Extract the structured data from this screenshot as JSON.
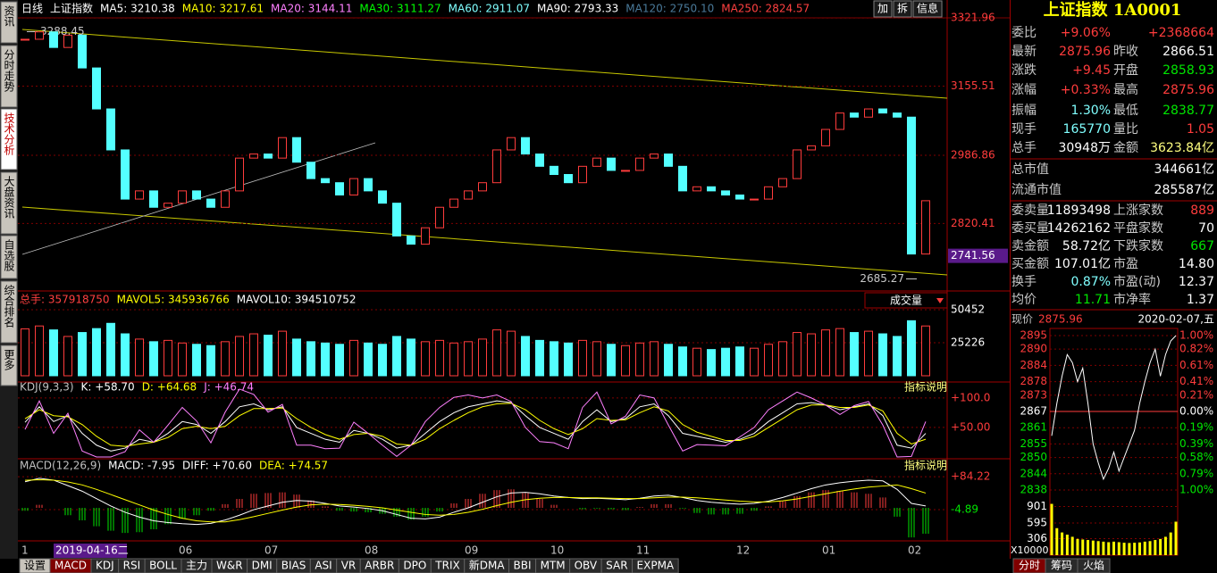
{
  "toolbar": {
    "items": [
      {
        "text": "日线",
        "color": "#ffffff"
      },
      {
        "text": "上证指数",
        "color": "#ffffff"
      },
      {
        "text": "MA5: 3210.38",
        "color": "#ffffff"
      },
      {
        "text": "MA10: 3217.61",
        "color": "#ffff00"
      },
      {
        "text": "MA20: 3144.11",
        "color": "#ff80ff"
      },
      {
        "text": "MA30: 3111.27",
        "color": "#00ff00"
      },
      {
        "text": "MA60: 2911.07",
        "color": "#80ffff"
      },
      {
        "text": "MA90: 2793.33",
        "color": "#ffffff"
      },
      {
        "text": "MA120: 2750.10",
        "color": "#4a7a9a"
      },
      {
        "text": "MA250: 2824.57",
        "color": "#ff4040"
      }
    ],
    "buttons": [
      "加",
      "拆",
      "信息"
    ]
  },
  "side_tabs": [
    "资讯",
    "分时走势",
    "技术分析",
    "大盘资讯",
    "自选股",
    "综合排名",
    "更多"
  ],
  "side_selected": 2,
  "price_chart": {
    "ylim": [
      2658,
      3344
    ],
    "yticks": [
      3321.96,
      3155.51,
      2986.86,
      2820.41
    ],
    "marker": 2741.56,
    "high_label": 3288.45,
    "low_label": 2685.27,
    "up_color": "#ff3c3c",
    "down_color": "#54ffff",
    "closes": [
      3270,
      3288,
      3250,
      3280,
      3200,
      3100,
      3000,
      2880,
      2900,
      2860,
      2870,
      2900,
      2880,
      2860,
      2900,
      2980,
      2990,
      2980,
      3030,
      2970,
      2930,
      2920,
      2890,
      2930,
      2900,
      2870,
      2790,
      2770,
      2810,
      2860,
      2880,
      2900,
      2920,
      3000,
      3030,
      2990,
      2960,
      2940,
      2920,
      2960,
      2980,
      2950,
      2950,
      2980,
      2990,
      2960,
      2900,
      2910,
      2900,
      2890,
      2880,
      2880,
      2910,
      2930,
      3000,
      3010,
      3050,
      3090,
      3080,
      3100,
      3090,
      3080,
      2746,
      2876
    ],
    "months": [
      "1",
      null,
      null,
      null,
      null,
      null,
      null,
      null,
      null,
      null,
      null,
      "06",
      null,
      null,
      null,
      null,
      null,
      "07",
      null,
      null,
      null,
      null,
      null,
      null,
      "08",
      null,
      null,
      null,
      null,
      null,
      null,
      "09",
      null,
      null,
      null,
      null,
      null,
      "10",
      null,
      null,
      null,
      null,
      null,
      "11",
      null,
      null,
      null,
      null,
      null,
      null,
      "12",
      null,
      null,
      null,
      null,
      null,
      "01",
      null,
      null,
      null,
      null,
      null,
      "02",
      null
    ],
    "cursor_date": "2019-04-16二"
  },
  "volume": {
    "items": [
      {
        "text": "总手: 357918750",
        "color": "#ff4040"
      },
      {
        "text": "MAVOL5: 345936766",
        "color": "#ffff00"
      },
      {
        "text": "MAVOL10: 394510752",
        "color": "#ffffff"
      }
    ],
    "selector": "成交量",
    "ylim": [
      0,
      54500
    ],
    "yticks": [
      50452,
      25226
    ],
    "values": [
      35792,
      38000,
      35000,
      30000,
      33000,
      36000,
      40000,
      32000,
      28000,
      26000,
      27000,
      25000,
      24000,
      23000,
      26000,
      30000,
      32000,
      31000,
      34000,
      28000,
      26000,
      25000,
      24000,
      27000,
      25000,
      24000,
      30000,
      28000,
      26000,
      27000,
      25000,
      26000,
      28000,
      35000,
      34000,
      30000,
      27000,
      26000,
      25000,
      27000,
      26000,
      24000,
      23000,
      25000,
      26000,
      24000,
      22000,
      21000,
      20000,
      21000,
      22000,
      21000,
      24000,
      26000,
      33000,
      32000,
      35000,
      36000,
      33000,
      34000,
      32000,
      30000,
      42000,
      38000
    ]
  },
  "kdj": {
    "items": [
      {
        "text": "KDJ(9,3,3)",
        "color": "#c0c0c0"
      },
      {
        "text": "K: +58.70",
        "color": "#ffffff"
      },
      {
        "text": "D: +64.68",
        "color": "#ffff00"
      },
      {
        "text": "J: +46.74",
        "color": "#ff80ff"
      }
    ],
    "help": "指标说明",
    "ylim": [
      0,
      124
    ],
    "yticks": [
      {
        "value": 100,
        "label": "+100.0"
      },
      {
        "value": 50,
        "label": "+50.00"
      }
    ],
    "k": [
      58.7,
      85,
      60,
      70,
      40,
      20,
      10,
      15,
      30,
      25,
      40,
      60,
      55,
      40,
      60,
      85,
      90,
      80,
      85,
      50,
      40,
      30,
      25,
      45,
      40,
      30,
      15,
      20,
      40,
      60,
      75,
      85,
      90,
      95,
      92,
      70,
      50,
      40,
      30,
      60,
      80,
      60,
      65,
      85,
      90,
      70,
      40,
      35,
      30,
      25,
      30,
      40,
      60,
      75,
      90,
      92,
      88,
      80,
      85,
      90,
      70,
      20,
      15,
      40
    ],
    "d": [
      64.68,
      80,
      70,
      68,
      55,
      35,
      20,
      18,
      22,
      25,
      33,
      48,
      52,
      48,
      52,
      70,
      82,
      82,
      83,
      65,
      50,
      38,
      30,
      38,
      40,
      35,
      22,
      20,
      30,
      48,
      62,
      75,
      85,
      90,
      91,
      80,
      62,
      48,
      38,
      48,
      65,
      62,
      63,
      75,
      85,
      78,
      55,
      42,
      35,
      28,
      28,
      35,
      50,
      65,
      80,
      88,
      88,
      84,
      84,
      88,
      78,
      40,
      22,
      30
    ],
    "j": [
      46.74,
      95,
      40,
      74,
      10,
      0,
      0,
      9,
      46,
      25,
      54,
      84,
      61,
      24,
      76,
      115,
      106,
      76,
      89,
      20,
      20,
      14,
      15,
      59,
      40,
      20,
      1,
      20,
      60,
      84,
      101,
      105,
      100,
      105,
      94,
      50,
      26,
      24,
      14,
      84,
      110,
      56,
      69,
      105,
      100,
      54,
      10,
      21,
      20,
      19,
      34,
      50,
      80,
      95,
      110,
      100,
      88,
      72,
      87,
      94,
      54,
      0,
      1,
      60
    ],
    "colors": [
      "#ffffff",
      "#ffff00",
      "#ff80ff"
    ]
  },
  "macd": {
    "items": [
      {
        "text": "MACD(12,26,9)",
        "color": "#c0c0c0"
      },
      {
        "text": "MACD: -7.95",
        "color": "#ffffff"
      },
      {
        "text": "DIFF: +70.60",
        "color": "#ffffff"
      },
      {
        "text": "DEA: +74.57",
        "color": "#ffff00"
      }
    ],
    "help": "指标说明",
    "ylim": [
      -87,
      128
    ],
    "yticks": [
      {
        "value": 84.22,
        "label": "+84.22"
      },
      -4.89
    ],
    "hist": [
      -7.95,
      8,
      0,
      -20,
      -34,
      -50,
      -62,
      -68,
      -66,
      -58,
      -44,
      -30,
      -20,
      -8,
      10,
      24,
      38,
      40,
      42,
      36,
      20,
      4,
      -8,
      -10,
      -12,
      -16,
      -24,
      -32,
      -24,
      -10,
      12,
      24,
      38,
      48,
      50,
      40,
      24,
      8,
      0,
      -4,
      -2,
      -4,
      -6,
      2,
      10,
      10,
      -2,
      -14,
      -18,
      -18,
      -16,
      -8,
      4,
      18,
      32,
      42,
      48,
      46,
      42,
      38,
      28,
      -24,
      -80,
      -70
    ],
    "diff": [
      70.6,
      80,
      75,
      60,
      45,
      25,
      5,
      -12,
      -25,
      -35,
      -40,
      -43,
      -45,
      -42,
      -33,
      -20,
      -5,
      5,
      15,
      20,
      18,
      12,
      5,
      2,
      -2,
      -8,
      -18,
      -28,
      -30,
      -25,
      -12,
      0,
      15,
      30,
      40,
      42,
      38,
      32,
      28,
      25,
      26,
      24,
      22,
      26,
      32,
      34,
      28,
      20,
      15,
      12,
      10,
      12,
      18,
      28,
      40,
      52,
      62,
      68,
      72,
      75,
      73,
      50,
      12,
      5
    ],
    "dea": [
      74.57,
      76,
      75,
      70,
      62,
      50,
      36,
      22,
      8,
      -6,
      -18,
      -28,
      -35,
      -38,
      -38,
      -32,
      -24,
      -15,
      -6,
      2,
      8,
      10,
      9,
      7,
      4,
      0,
      -6,
      -12,
      -18,
      -20,
      -18,
      -12,
      -4,
      6,
      15,
      22,
      26,
      28,
      28,
      27,
      27,
      26,
      25,
      25,
      27,
      29,
      29,
      27,
      24,
      21,
      18,
      16,
      16,
      19,
      24,
      31,
      38,
      45,
      51,
      56,
      59,
      62,
      52,
      40
    ]
  },
  "quote": {
    "title": "上证指数 1A0001",
    "rows": [
      [
        {
          "label": "委比",
          "value": "+9.06%",
          "color": "#ff3c3c"
        },
        {
          "value": "+2368664",
          "color": "#ff3c3c"
        }
      ],
      [
        {
          "label": "最新",
          "value": "2875.96",
          "color": "#ff3c3c"
        },
        {
          "label": "昨收",
          "value": "2866.51",
          "color": "#ffffff"
        }
      ],
      [
        {
          "label": "涨跌",
          "value": "+9.45",
          "color": "#ff3c3c"
        },
        {
          "label": "开盘",
          "value": "2858.93",
          "color": "#00e600"
        }
      ],
      [
        {
          "label": "涨幅",
          "value": "+0.33%",
          "color": "#ff3c3c"
        },
        {
          "label": "最高",
          "value": "2875.96",
          "color": "#ff3c3c"
        }
      ],
      [
        {
          "label": "振幅",
          "value": "1.30%",
          "color": "#80ffff"
        },
        {
          "label": "最低",
          "value": "2838.77",
          "color": "#00e600"
        }
      ],
      [
        {
          "label": "现手",
          "value": "165770",
          "color": "#80ffff"
        },
        {
          "label": "量比",
          "value": "1.05",
          "color": "#ff3c3c"
        }
      ],
      [
        {
          "label": "总手",
          "value": "30948万",
          "color": "#ffffff"
        },
        {
          "label": "金额",
          "value": "3623.84亿",
          "color": "#ffff80"
        }
      ],
      [
        {
          "label": "总市值",
          "value": "344661亿",
          "color": "#ffffff"
        }
      ],
      [
        {
          "label": "流通市值",
          "value": "285587亿",
          "color": "#ffffff"
        }
      ],
      [
        {
          "label": "委卖量",
          "value": "11893498",
          "color": "#ffffff"
        },
        {
          "label": "上涨家数",
          "value": "889",
          "color": "#ff3c3c"
        }
      ],
      [
        {
          "label": "委买量",
          "value": "14262162",
          "color": "#ffffff"
        },
        {
          "label": "平盘家数",
          "value": "70",
          "color": "#ffffff"
        }
      ],
      [
        {
          "label": "卖金额",
          "value": "58.72亿",
          "color": "#ffffff"
        },
        {
          "label": "下跌家数",
          "value": "667",
          "color": "#00e600"
        }
      ],
      [
        {
          "label": "买金额",
          "value": "107.01亿",
          "color": "#ffffff"
        },
        {
          "label": "市盈",
          "value": "14.80",
          "color": "#ffffff"
        }
      ],
      [
        {
          "label": "换手",
          "value": "0.87%",
          "color": "#80ffff"
        },
        {
          "label": "市盈(动)",
          "value": "12.37",
          "color": "#ffffff"
        }
      ],
      [
        {
          "label": "均价",
          "value": "11.71",
          "color": "#00e600"
        },
        {
          "label": "市净率",
          "value": "1.37",
          "color": "#ffffff"
        }
      ]
    ],
    "price_label": "现价",
    "price": "2875.96",
    "date": "2020-02-07,五"
  },
  "intraday": {
    "ylim": [
      2838,
      2895
    ],
    "yticks": [
      2895,
      2890,
      2884,
      2878,
      2873,
      2867,
      2861,
      2855,
      2850,
      2844,
      2838
    ],
    "pct_labels": [
      "1.00%",
      "0.82%",
      "0.61%",
      "0.41%",
      "0.21%",
      "0.00%",
      "0.19%",
      "0.39%",
      "0.58%",
      "0.79%",
      "1.00%"
    ],
    "prices": [
      2858,
      2870,
      2880,
      2888,
      2885,
      2878,
      2883,
      2870,
      2855,
      2848,
      2842,
      2846,
      2852,
      2845,
      2850,
      2855,
      2860,
      2870,
      2878,
      2885,
      2890,
      2880,
      2888,
      2893,
      2895
    ],
    "vol_ylim": [
      0,
      1025
    ],
    "vol_ticks": [
      901,
      595,
      306
    ],
    "vol_unit": "X10000",
    "volumes": [
      950,
      500,
      420,
      380,
      340,
      300,
      290,
      280,
      270,
      260,
      250,
      240,
      250,
      240,
      230,
      225,
      230,
      235,
      250,
      260,
      280,
      300,
      340,
      420,
      620
    ],
    "tabs": [
      "分时",
      "筹码",
      "火焰"
    ]
  },
  "bottom_tabs": [
    "设置",
    "MACD",
    "KDJ",
    "RSI",
    "BOLL",
    "主力",
    "W&R",
    "DMI",
    "BIAS",
    "ASI",
    "VR",
    "ARBR",
    "DPO",
    "TRIX",
    "新DMA",
    "BBI",
    "MTM",
    "OBV",
    "SAR",
    "EXPMA"
  ],
  "bottom_selected": 1
}
